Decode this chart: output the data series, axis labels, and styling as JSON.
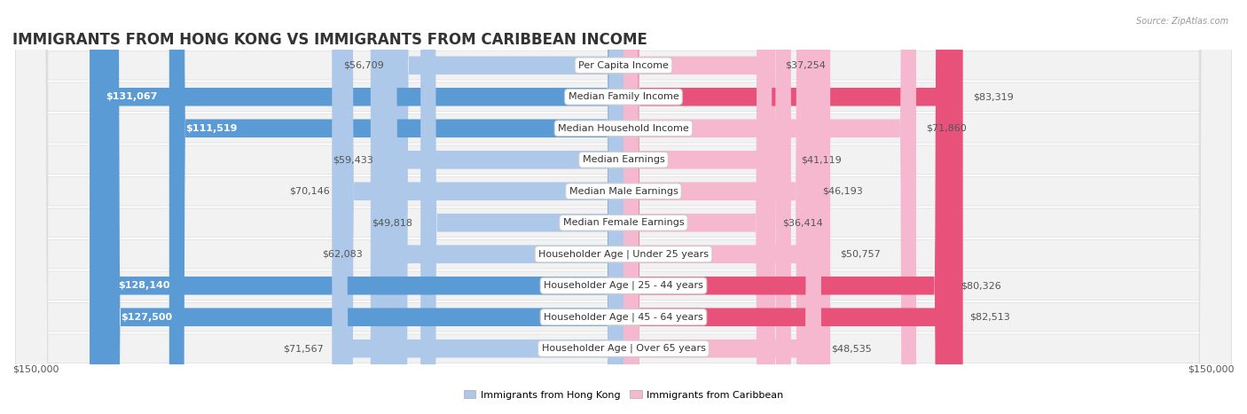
{
  "title": "IMMIGRANTS FROM HONG KONG VS IMMIGRANTS FROM CARIBBEAN INCOME",
  "source": "Source: ZipAtlas.com",
  "categories": [
    "Per Capita Income",
    "Median Family Income",
    "Median Household Income",
    "Median Earnings",
    "Median Male Earnings",
    "Median Female Earnings",
    "Householder Age | Under 25 years",
    "Householder Age | 25 - 44 years",
    "Householder Age | 45 - 64 years",
    "Householder Age | Over 65 years"
  ],
  "hk_values": [
    56709,
    131067,
    111519,
    59433,
    70146,
    49818,
    62083,
    128140,
    127500,
    71567
  ],
  "carib_values": [
    37254,
    83319,
    71860,
    41119,
    46193,
    36414,
    50757,
    80326,
    82513,
    48535
  ],
  "hk_labels": [
    "$56,709",
    "$131,067",
    "$111,519",
    "$59,433",
    "$70,146",
    "$49,818",
    "$62,083",
    "$128,140",
    "$127,500",
    "$71,567"
  ],
  "carib_labels": [
    "$37,254",
    "$83,319",
    "$71,860",
    "$41,119",
    "$46,193",
    "$36,414",
    "$50,757",
    "$80,326",
    "$82,513",
    "$48,535"
  ],
  "hk_color_light": "#adc8e8",
  "hk_color_dark": "#5b9bd5",
  "carib_color_light": "#f5b8cf",
  "carib_color_dark": "#e8527a",
  "hk_threshold": 100000,
  "carib_threshold": 75000,
  "max_val": 150000,
  "x_label_left": "$150,000",
  "x_label_right": "$150,000",
  "legend_hk": "Immigrants from Hong Kong",
  "legend_carib": "Immigrants from Caribbean",
  "background_color": "#ffffff",
  "row_bg_even": "#f0f0f0",
  "row_bg_odd": "#f8f8f8",
  "title_fontsize": 12,
  "label_fontsize": 8,
  "category_fontsize": 8
}
